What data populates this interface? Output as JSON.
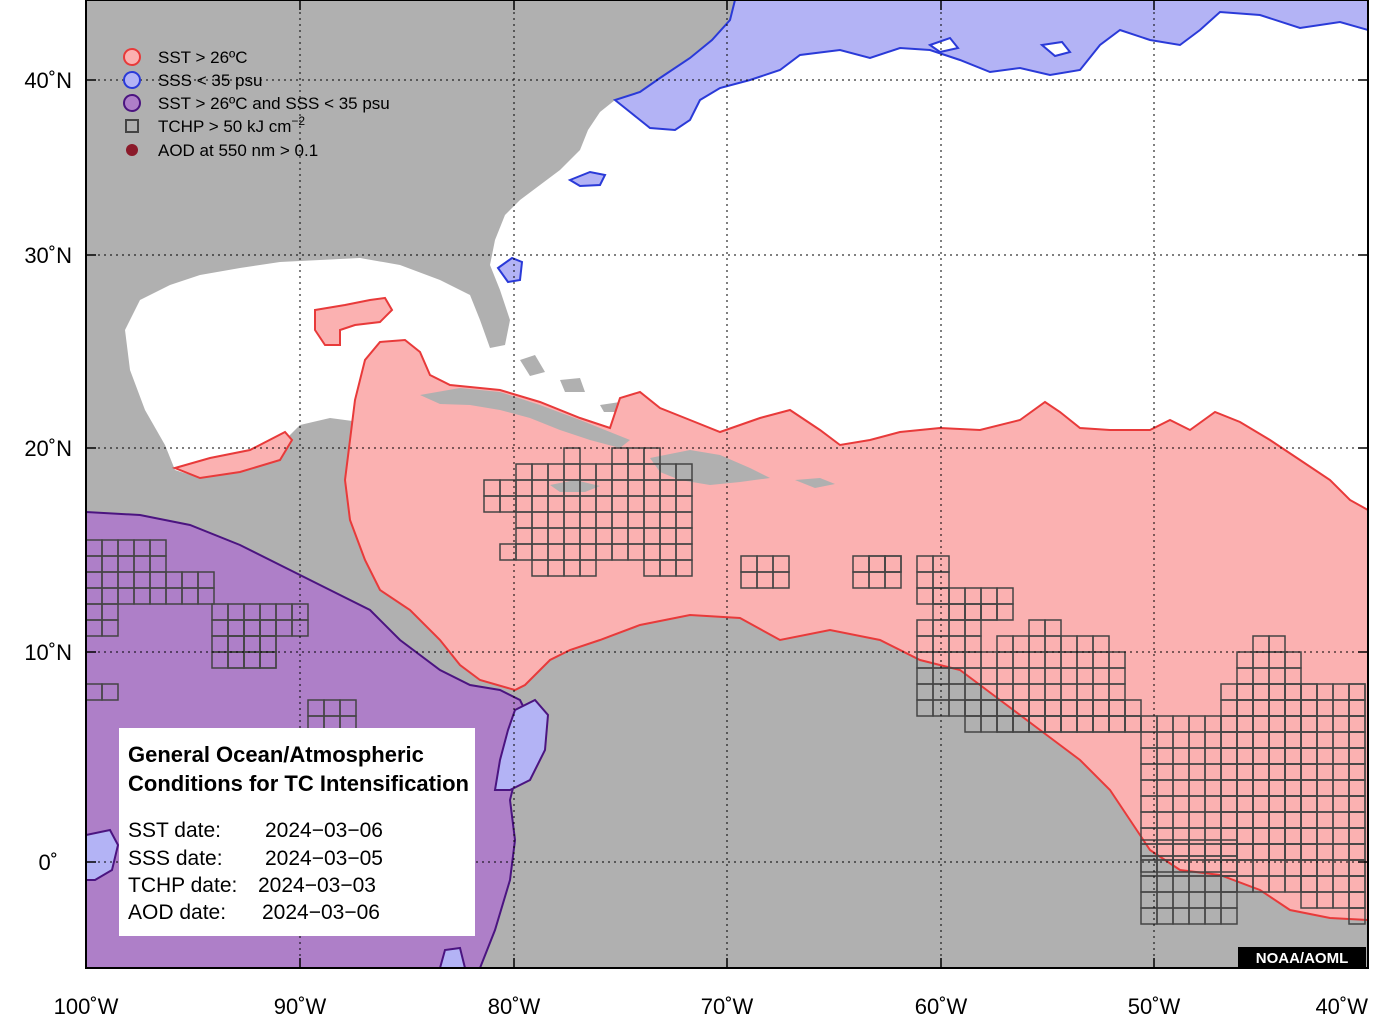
{
  "map": {
    "lon_range": [
      -100,
      -40
    ],
    "lat_range": [
      -5,
      44
    ],
    "grid_lines": "dotted",
    "colors": {
      "land": "#b0b0b0",
      "ocean": "#ffffff",
      "sst_fill": "#fbb1b1",
      "sst_line": "#e83a3a",
      "sss_fill": "#b3b3f5",
      "sss_line": "#2a3ad8",
      "both_fill": "#ae7fc8",
      "both_line": "#4b1480",
      "tchp_line": "#444444",
      "aod_dot": "#8b1a2a",
      "credit_bg": "#000000"
    }
  },
  "x_ticks": [
    "100˚W",
    "90˚W",
    "80˚W",
    "70˚W",
    "60˚W",
    "50˚W",
    "40˚W"
  ],
  "y_ticks": [
    "40˚N",
    "30˚N",
    "20˚N",
    "10˚N",
    "0˚"
  ],
  "legend": {
    "items": [
      {
        "icon": "red-circle-icon",
        "label": "SST > 26ºC"
      },
      {
        "icon": "blue-circle-icon",
        "label": "SSS < 35 psu"
      },
      {
        "icon": "purple-circle-icon",
        "label": "SST > 26ºC and SSS < 35 psu"
      },
      {
        "icon": "square-outline-icon",
        "label": "TCHP > 50 kJ cm",
        "sup": "−2"
      },
      {
        "icon": "dark-red-dot-icon",
        "label": "AOD at 550 nm > 0.1"
      }
    ]
  },
  "info_box": {
    "title_line1": "General Ocean/Atmospheric",
    "title_line2": "Conditions for TC Intensification",
    "dates": [
      {
        "label": "SST date:",
        "value": "2024−03−06"
      },
      {
        "label": "SSS date:",
        "value": "2024−03−05"
      },
      {
        "label": "TCHP date:",
        "value": "2024−03−03"
      },
      {
        "label": "AOD date:",
        "value": "2024−03−06"
      }
    ]
  },
  "credit": "NOAA/AOML"
}
